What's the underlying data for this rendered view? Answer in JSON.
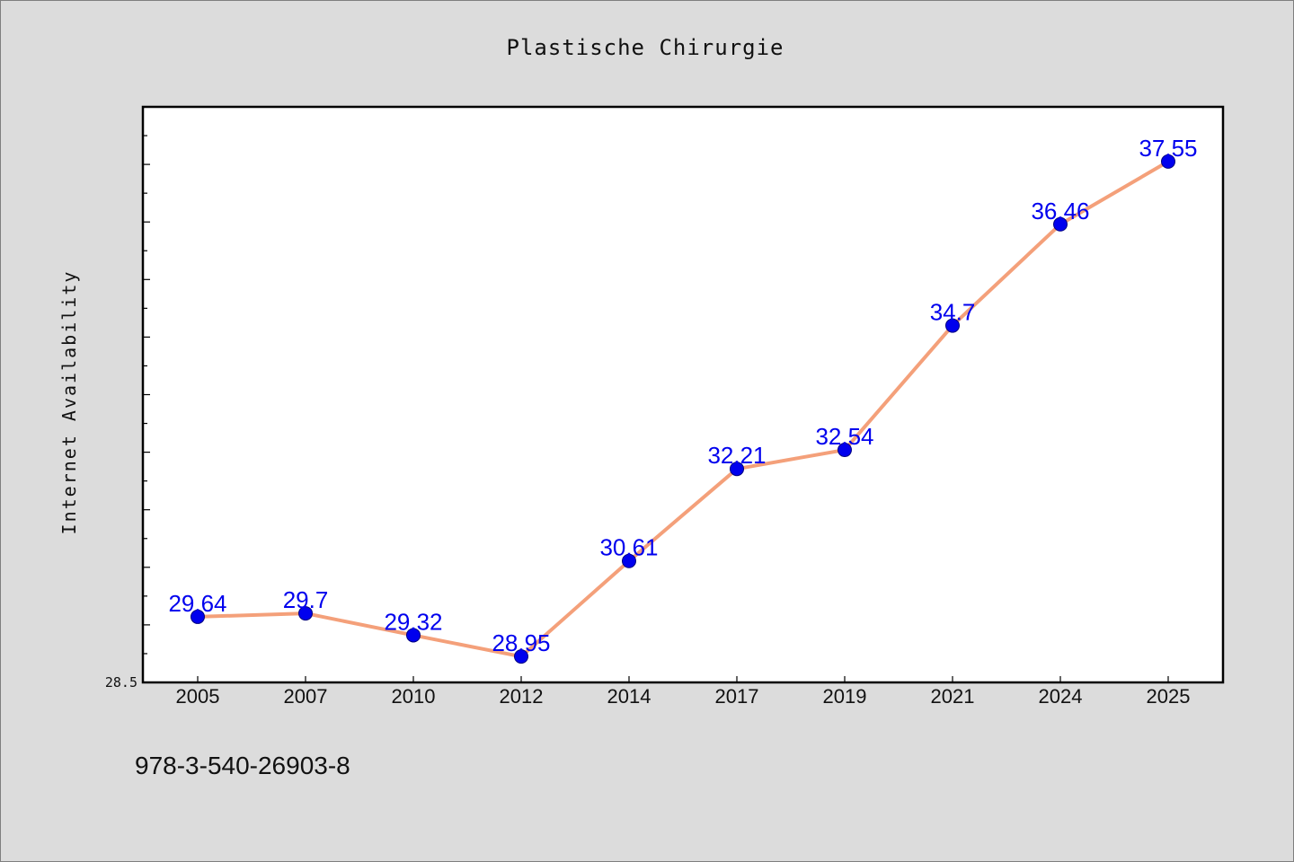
{
  "chart_data": {
    "type": "line",
    "title": "Plastische Chirurgie",
    "xlabel": "",
    "ylabel": "Internet Availability",
    "categories": [
      "2005",
      "2007",
      "2010",
      "2012",
      "2014",
      "2017",
      "2019",
      "2021",
      "2024",
      "2025"
    ],
    "series": [
      {
        "values": [
          29.64,
          29.7,
          29.32,
          28.95,
          30.61,
          32.21,
          32.54,
          34.7,
          36.46,
          37.55
        ]
      }
    ],
    "data_labels": [
      "29.64",
      "29.7",
      "29.32",
      "28.95",
      "30.61",
      "32.21",
      "32.54",
      "34.7",
      "36.46",
      "37.55"
    ],
    "ylim": [
      28.5,
      38.5
    ],
    "yticks_labeled": [
      "28.5"
    ],
    "grid": false,
    "legend": "none",
    "colors": {
      "line": "#f4a07a",
      "marker": "#0000ee",
      "data_label": "#0000ee",
      "plot_background": "#ffffff",
      "page_background": "#dcdcdc"
    }
  },
  "footer": {
    "isbn": "978-3-540-26903-8"
  }
}
